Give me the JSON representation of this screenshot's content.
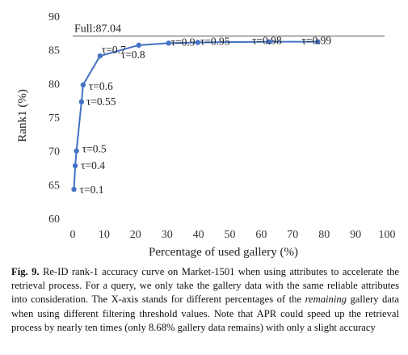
{
  "chart_data": {
    "type": "line",
    "xlabel": "Percentage of used gallery (%)",
    "ylabel": "Rank1 (%)",
    "xlim": [
      0,
      100
    ],
    "ylim": [
      60,
      90
    ],
    "x_ticks": [
      0,
      10,
      20,
      30,
      40,
      50,
      60,
      70,
      80,
      90,
      100
    ],
    "y_ticks": [
      60,
      65,
      70,
      75,
      80,
      85,
      90
    ],
    "grid": false,
    "legend": "none",
    "series": [
      {
        "color": "#4472c4",
        "points": [
          {
            "x": 0.4,
            "y": 64.3,
            "label": "τ=0.1"
          },
          {
            "x": 0.8,
            "y": 67.8,
            "label": "τ=0.4"
          },
          {
            "x": 1.2,
            "y": 70.0,
            "label": "τ=0.5"
          },
          {
            "x": 2.8,
            "y": 77.3,
            "label": "τ=0.55"
          },
          {
            "x": 3.3,
            "y": 79.8,
            "label": "τ=0.6"
          },
          {
            "x": 8.7,
            "y": 84.1,
            "label": "τ=0.7"
          },
          {
            "x": 21.0,
            "y": 85.7,
            "label": "τ=0.8"
          },
          {
            "x": 30.5,
            "y": 86.0,
            "label": "τ=0.9"
          },
          {
            "x": 39.8,
            "y": 86.1,
            "label": "τ=0.95"
          },
          {
            "x": 62.5,
            "y": 86.2,
            "label": "τ=0.98"
          },
          {
            "x": 78.0,
            "y": 86.2,
            "label": "τ=0.99"
          }
        ]
      }
    ],
    "reference_line": {
      "y": 87.04,
      "label": "Full:87.04",
      "color": "#555555"
    }
  },
  "caption": {
    "fig_label": "Fig. 9.",
    "text_1": " Re-ID rank-1 accuracy curve on Market-1501 when using attributes to accelerate the retrieval process. For a query, we only take the gallery data with the same reliable attributes into consideration. The X-axis stands for different percentages of the ",
    "text_em": "remaining",
    "text_2": " gallery data when using different filtering threshold values. Note that APR could speed up the retrieval process by nearly ten times (only 8.68% gallery data remains) with only a slight accuracy"
  }
}
